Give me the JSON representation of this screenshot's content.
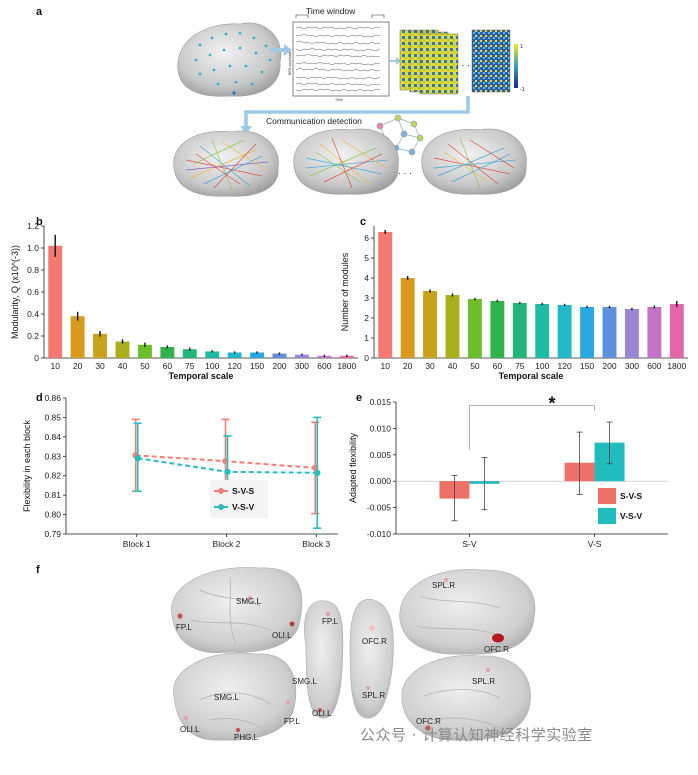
{
  "panels": {
    "a": {
      "letter": "a",
      "time_window_label": "Time window",
      "eeg_ylabel": "EEG amplitude",
      "eeg_xlabel": "Time",
      "colorbar_max": "1",
      "colorbar_min": "-1",
      "ellipsis": "· · ·",
      "communication_label": "Communication detection"
    },
    "b": {
      "letter": "b"
    },
    "c": {
      "letter": "c"
    },
    "d": {
      "letter": "d"
    },
    "e": {
      "letter": "e",
      "significance": "*"
    },
    "f": {
      "letter": "f",
      "labels": {
        "fp_l_left": "FP.L",
        "smg_l_top": "SMG.L",
        "oli_l_top": "OLI.L",
        "fp_l_mid": "FP.L",
        "ofc_r_mid": "OFC.R",
        "smg_l_mid": "SMG.L",
        "spl_r_mid": "SPL.R",
        "oli_l_mid": "OLI.L",
        "spl_r_top": "SPL.R",
        "ofc_r_top": "OFC.R",
        "smg_l_bot": "SMG.L",
        "oli_l_bot": "OLI.L",
        "phg_l": "PHG.L",
        "fp_l_bot": "FP.L",
        "spl_r_bot": "SPL.R",
        "ofc_r_bot": "OFC.R"
      }
    }
  },
  "watermark": "公众号 · 计算认知神经科学实验室",
  "chart_data": [
    {
      "id": "b",
      "type": "bar",
      "xlabel": "Temporal scale",
      "ylabel": "Modularity, Q (x10^(-3))",
      "ylim": [
        0,
        1.2
      ],
      "yticks": [
        "0",
        "0.2",
        "0.4",
        "0.6",
        "0.8",
        "1.0",
        "1.2"
      ],
      "categories": [
        "10",
        "20",
        "30",
        "40",
        "50",
        "60",
        "75",
        "100",
        "120",
        "150",
        "200",
        "300",
        "600",
        "1800"
      ],
      "values": [
        1.02,
        0.38,
        0.22,
        0.15,
        0.12,
        0.1,
        0.08,
        0.06,
        0.05,
        0.05,
        0.04,
        0.03,
        0.02,
        0.02
      ],
      "errors": [
        0.1,
        0.04,
        0.025,
        0.02,
        0.02,
        0.015,
        0.015,
        0.01,
        0.01,
        0.01,
        0.01,
        0.01,
        0.01,
        0.01
      ],
      "colors": [
        "#f47a71",
        "#d99a1c",
        "#c7a21a",
        "#a9b01c",
        "#6dbe2a",
        "#2fb34a",
        "#22b57a",
        "#1fbba3",
        "#1fb9c9",
        "#2aa8e0",
        "#5e90dc",
        "#9a84d6",
        "#c373c6",
        "#e466a6"
      ]
    },
    {
      "id": "c",
      "type": "bar",
      "xlabel": "Temporal scale",
      "ylabel": "Number of modules",
      "ylim": [
        0,
        6.6
      ],
      "yticks": [
        "0",
        "1",
        "2",
        "3",
        "4",
        "5",
        "6"
      ],
      "categories": [
        "10",
        "20",
        "30",
        "40",
        "50",
        "60",
        "75",
        "100",
        "120",
        "150",
        "200",
        "300",
        "600",
        "1800"
      ],
      "values": [
        6.3,
        4.0,
        3.35,
        3.15,
        2.95,
        2.85,
        2.75,
        2.7,
        2.65,
        2.55,
        2.55,
        2.45,
        2.55,
        2.7
      ],
      "errors": [
        0.1,
        0.1,
        0.08,
        0.08,
        0.06,
        0.06,
        0.06,
        0.06,
        0.06,
        0.06,
        0.06,
        0.06,
        0.08,
        0.15
      ],
      "colors": [
        "#f47a71",
        "#d99a1c",
        "#c7a21a",
        "#a9b01c",
        "#6dbe2a",
        "#2fb34a",
        "#22b57a",
        "#1fbba3",
        "#1fb9c9",
        "#2aa8e0",
        "#5e90dc",
        "#9a84d6",
        "#c373c6",
        "#e466a6"
      ]
    },
    {
      "id": "d",
      "type": "line",
      "xlabel": "",
      "ylabel": "Flexibility in each block",
      "ylim": [
        0.79,
        0.86
      ],
      "yticks": [
        "0.79",
        "0.80",
        "0.81",
        "0.82",
        "0.83",
        "0.84",
        "0.85",
        "0.86"
      ],
      "categories": [
        "Block 1",
        "Block 2",
        "Block 3"
      ],
      "series": [
        {
          "name": "S-V-S",
          "color": "#f08078",
          "values": [
            0.8305,
            0.8275,
            0.824
          ],
          "low": [
            0.812,
            0.805,
            0.8005
          ],
          "high": [
            0.849,
            0.849,
            0.8475
          ]
        },
        {
          "name": "V-S-V",
          "color": "#2bbcbc",
          "values": [
            0.829,
            0.822,
            0.8215
          ],
          "low": [
            0.812,
            0.804,
            0.793
          ],
          "high": [
            0.847,
            0.8405,
            0.85
          ]
        }
      ],
      "legend": "bottom-right"
    },
    {
      "id": "e",
      "type": "bar",
      "xlabel": "",
      "ylabel": "Adapted flexibility",
      "ylim": [
        -0.01,
        0.015
      ],
      "yticks": [
        "-0.010",
        "-0.005",
        "0.000",
        "0.005",
        "0.010",
        "0.015"
      ],
      "categories": [
        "S-V",
        "V-S"
      ],
      "series": [
        {
          "name": "S-V-S",
          "color": "#ee7168",
          "values": [
            -0.0033,
            0.0035
          ],
          "low": [
            -0.0075,
            -0.0025
          ],
          "high": [
            0.0011,
            0.0093
          ]
        },
        {
          "name": "V-S-V",
          "color": "#21bcbd",
          "values": [
            -0.0005,
            0.0073
          ],
          "low": [
            -0.0054,
            0.0033
          ],
          "high": [
            0.0045,
            0.0112
          ]
        }
      ],
      "legend": "bottom-right"
    }
  ]
}
